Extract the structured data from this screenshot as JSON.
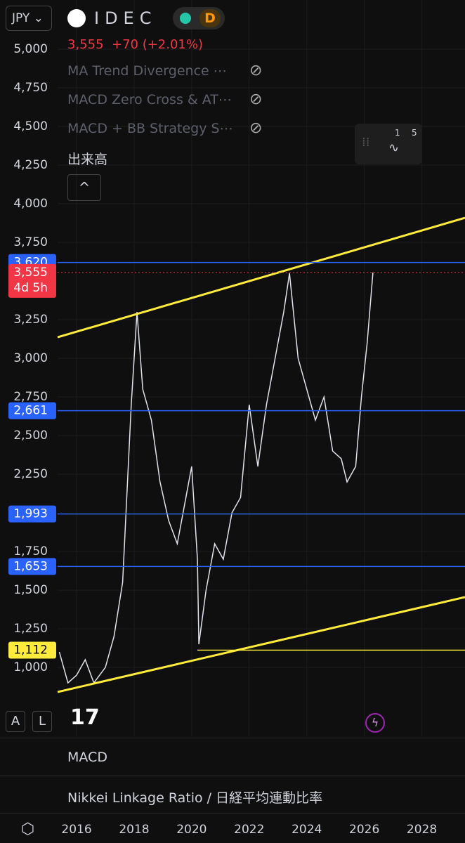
{
  "header": {
    "currency": "JPY",
    "symbol": "IDEC",
    "interval": "D",
    "price": "3,555",
    "change": "+70 (+2.01%)",
    "indicators": [
      "MA Trend Divergence ⋯",
      "MACD Zero Cross & AT⋯",
      "MACD + BB Strategy S⋯"
    ],
    "volume_label": "出来高",
    "widget_labels": [
      "1",
      "5"
    ]
  },
  "chart_data": {
    "type": "line",
    "color": "#e0e3eb",
    "x": [
      2015.4,
      2015.7,
      2016.0,
      2016.3,
      2016.6,
      2017.0,
      2017.3,
      2017.6,
      2017.9,
      2018.1,
      2018.3,
      2018.6,
      2018.9,
      2019.2,
      2019.5,
      2019.8,
      2020.0,
      2020.2,
      2020.25,
      2020.5,
      2020.8,
      2021.1,
      2021.4,
      2021.7,
      2022.0,
      2022.3,
      2022.6,
      2022.9,
      2023.2,
      2023.4,
      2023.7,
      2024.0,
      2024.3,
      2024.6,
      2024.9,
      2025.2,
      2025.4,
      2025.7,
      2025.9,
      2026.1,
      2026.3
    ],
    "values": [
      1100,
      900,
      950,
      1050,
      900,
      1000,
      1200,
      1550,
      2700,
      3300,
      2800,
      2600,
      2200,
      1950,
      1800,
      2100,
      2300,
      1700,
      1150,
      1500,
      1800,
      1700,
      2000,
      2100,
      2700,
      2300,
      2700,
      3000,
      3300,
      3550,
      3000,
      2800,
      2600,
      2750,
      2400,
      2350,
      2200,
      2300,
      2750,
      3100,
      3555
    ],
    "xlim": [
      2015.34,
      2029.5
    ],
    "ylim": [
      555,
      5318
    ],
    "yticks": [
      {
        "value": 5000,
        "label": "5,000"
      },
      {
        "value": 4750,
        "label": "4,750"
      },
      {
        "value": 4500,
        "label": "4,500"
      },
      {
        "value": 4250,
        "label": "4,250"
      },
      {
        "value": 4000,
        "label": "4,000"
      },
      {
        "value": 3750,
        "label": "3,750"
      },
      {
        "value": 3250,
        "label": "3,250"
      },
      {
        "value": 3000,
        "label": "3,000"
      },
      {
        "value": 2750,
        "label": "2,750"
      },
      {
        "value": 2500,
        "label": "2,500"
      },
      {
        "value": 2250,
        "label": "2,250"
      },
      {
        "value": 1750,
        "label": "1,750"
      },
      {
        "value": 1500,
        "label": "1,500"
      },
      {
        "value": 1250,
        "label": "1,250"
      },
      {
        "value": 1000,
        "label": "1,000"
      }
    ],
    "xticks": [
      2016,
      2018,
      2020,
      2022,
      2024,
      2026,
      2028
    ],
    "levels": [
      {
        "value": 3620,
        "label": "3,620",
        "color": "#2962ff"
      },
      {
        "value": 2661,
        "label": "2,661",
        "color": "#2962ff"
      },
      {
        "value": 1993,
        "label": "1,993",
        "color": "#2962ff"
      },
      {
        "value": 1653,
        "label": "1,653",
        "color": "#2962ff"
      },
      {
        "value": 1112,
        "label": "1,112",
        "color": "#ffeb3b",
        "start": 2020.2
      }
    ],
    "last_price": {
      "value": 3555,
      "label": "3,555",
      "countdown": "4d 5h",
      "color": "#f23645"
    },
    "trendlines": [
      {
        "x": [
          2015.34,
          2029.5
        ],
        "values": [
          3136,
          3909
        ],
        "color": "#ffeb3b"
      },
      {
        "x": [
          2015.34,
          2029.5
        ],
        "values": [
          841,
          1455
        ],
        "color": "#ffeb3b"
      }
    ]
  },
  "footer": {
    "panes": [
      "MACD",
      "Nikkei Linkage Ratio / 日経平均連動比率"
    ],
    "buttons": [
      "A",
      "L"
    ]
  }
}
